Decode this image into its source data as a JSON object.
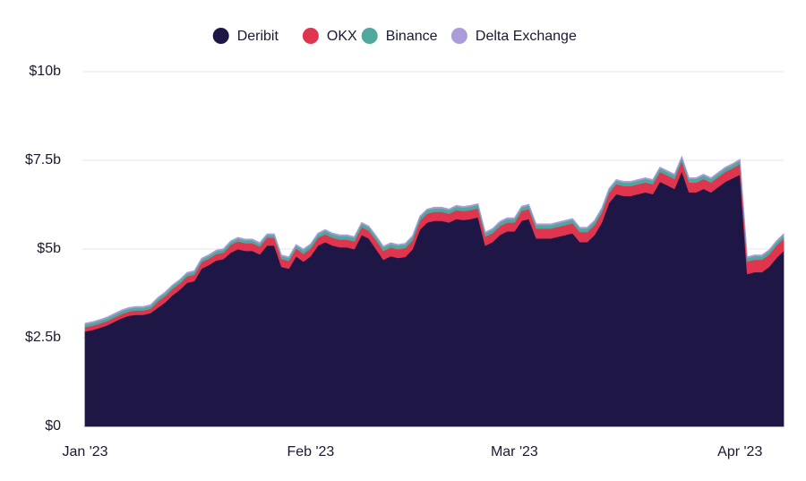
{
  "chart_data": {
    "type": "stacked_area",
    "categories": [
      "Jan '23",
      null,
      null,
      null,
      null,
      null,
      null,
      null,
      null,
      null,
      null,
      null,
      null,
      null,
      null,
      null,
      null,
      null,
      null,
      null,
      null,
      null,
      null,
      null,
      null,
      null,
      null,
      null,
      null,
      null,
      null,
      "Feb '23",
      null,
      null,
      null,
      null,
      null,
      null,
      null,
      null,
      null,
      null,
      null,
      null,
      null,
      null,
      null,
      null,
      null,
      null,
      null,
      null,
      null,
      null,
      null,
      null,
      null,
      null,
      null,
      "Mar '23",
      null,
      null,
      null,
      null,
      null,
      null,
      null,
      null,
      null,
      null,
      null,
      null,
      null,
      null,
      null,
      null,
      null,
      null,
      null,
      null,
      null,
      null,
      null,
      null,
      null,
      null,
      null,
      null,
      null,
      null,
      "Apr '23",
      null,
      null,
      null,
      null,
      null,
      null
    ],
    "series": [
      {
        "name": "Deribit",
        "color": "#1e1745",
        "values": [
          2.68,
          2.72,
          2.78,
          2.85,
          2.95,
          3.05,
          3.12,
          3.15,
          3.15,
          3.2,
          3.35,
          3.5,
          3.7,
          3.85,
          4.05,
          4.1,
          4.45,
          4.55,
          4.68,
          4.72,
          4.9,
          5.0,
          4.95,
          4.95,
          4.85,
          5.1,
          5.1,
          4.5,
          4.45,
          4.8,
          4.65,
          4.8,
          5.1,
          5.2,
          5.1,
          5.05,
          5.05,
          5.0,
          5.4,
          5.3,
          5.0,
          4.7,
          4.8,
          4.75,
          4.78,
          5.0,
          5.55,
          5.75,
          5.8,
          5.8,
          5.75,
          5.85,
          5.82,
          5.85,
          5.9,
          5.1,
          5.2,
          5.4,
          5.5,
          5.5,
          5.8,
          5.85,
          5.3,
          5.3,
          5.3,
          5.35,
          5.4,
          5.45,
          5.2,
          5.2,
          5.4,
          5.75,
          6.3,
          6.55,
          6.5,
          6.5,
          6.55,
          6.6,
          6.55,
          6.9,
          6.8,
          6.7,
          7.2,
          6.6,
          6.6,
          6.7,
          6.6,
          6.75,
          6.9,
          7.0,
          7.1,
          4.3,
          4.35,
          4.35,
          4.5,
          4.75,
          4.95
        ]
      },
      {
        "name": "OKX",
        "color": "#e0354f",
        "values": [
          0.12,
          0.12,
          0.12,
          0.12,
          0.12,
          0.12,
          0.12,
          0.12,
          0.12,
          0.12,
          0.18,
          0.18,
          0.18,
          0.18,
          0.18,
          0.18,
          0.18,
          0.18,
          0.18,
          0.18,
          0.22,
          0.22,
          0.22,
          0.22,
          0.22,
          0.22,
          0.22,
          0.22,
          0.22,
          0.22,
          0.22,
          0.22,
          0.22,
          0.22,
          0.22,
          0.22,
          0.22,
          0.22,
          0.22,
          0.22,
          0.25,
          0.25,
          0.25,
          0.25,
          0.25,
          0.25,
          0.25,
          0.25,
          0.25,
          0.25,
          0.25,
          0.25,
          0.25,
          0.25,
          0.25,
          0.25,
          0.25,
          0.25,
          0.25,
          0.25,
          0.28,
          0.28,
          0.28,
          0.28,
          0.28,
          0.28,
          0.28,
          0.28,
          0.28,
          0.28,
          0.28,
          0.28,
          0.28,
          0.28,
          0.28,
          0.28,
          0.28,
          0.28,
          0.28,
          0.28,
          0.28,
          0.28,
          0.28,
          0.28,
          0.28,
          0.28,
          0.28,
          0.28,
          0.28,
          0.28,
          0.3,
          0.35,
          0.35,
          0.35,
          0.35,
          0.35,
          0.35
        ]
      },
      {
        "name": "Binance",
        "color": "#4fa89c",
        "values": [
          0.08,
          0.08,
          0.08,
          0.08,
          0.08,
          0.08,
          0.08,
          0.08,
          0.08,
          0.08,
          0.08,
          0.08,
          0.08,
          0.08,
          0.08,
          0.08,
          0.08,
          0.08,
          0.08,
          0.08,
          0.08,
          0.08,
          0.08,
          0.08,
          0.08,
          0.08,
          0.08,
          0.08,
          0.08,
          0.08,
          0.1,
          0.1,
          0.1,
          0.1,
          0.1,
          0.1,
          0.1,
          0.1,
          0.1,
          0.1,
          0.1,
          0.1,
          0.1,
          0.1,
          0.1,
          0.1,
          0.1,
          0.1,
          0.1,
          0.1,
          0.1,
          0.1,
          0.1,
          0.1,
          0.1,
          0.1,
          0.1,
          0.1,
          0.1,
          0.1,
          0.1,
          0.1,
          0.1,
          0.1,
          0.1,
          0.1,
          0.1,
          0.1,
          0.1,
          0.1,
          0.1,
          0.1,
          0.1,
          0.1,
          0.1,
          0.1,
          0.1,
          0.1,
          0.1,
          0.1,
          0.1,
          0.1,
          0.1,
          0.1,
          0.1,
          0.1,
          0.1,
          0.1,
          0.1,
          0.1,
          0.1,
          0.1,
          0.1,
          0.1,
          0.1,
          0.1,
          0.1
        ]
      },
      {
        "name": "Delta Exchange",
        "color": "#a99cd9",
        "values": [
          0.03,
          0.03,
          0.03,
          0.03,
          0.03,
          0.03,
          0.03,
          0.03,
          0.03,
          0.03,
          0.03,
          0.03,
          0.03,
          0.03,
          0.03,
          0.03,
          0.03,
          0.03,
          0.03,
          0.03,
          0.03,
          0.03,
          0.03,
          0.03,
          0.03,
          0.03,
          0.03,
          0.03,
          0.03,
          0.03,
          0.03,
          0.03,
          0.03,
          0.03,
          0.03,
          0.03,
          0.03,
          0.03,
          0.03,
          0.03,
          0.03,
          0.03,
          0.03,
          0.03,
          0.03,
          0.03,
          0.03,
          0.03,
          0.03,
          0.03,
          0.03,
          0.03,
          0.03,
          0.03,
          0.03,
          0.03,
          0.03,
          0.03,
          0.03,
          0.03,
          0.03,
          0.03,
          0.03,
          0.03,
          0.03,
          0.03,
          0.03,
          0.03,
          0.03,
          0.03,
          0.03,
          0.03,
          0.03,
          0.03,
          0.03,
          0.03,
          0.03,
          0.03,
          0.03,
          0.03,
          0.03,
          0.03,
          0.03,
          0.03,
          0.03,
          0.03,
          0.03,
          0.03,
          0.03,
          0.03,
          0.03,
          0.03,
          0.03,
          0.03,
          0.03,
          0.03,
          0.03
        ]
      }
    ],
    "ylim": [
      0,
      10
    ],
    "yticks": [
      {
        "value": 0,
        "label": "$0"
      },
      {
        "value": 2.5,
        "label": "$2.5b"
      },
      {
        "value": 5,
        "label": "$5b"
      },
      {
        "value": 7.5,
        "label": "$7.5b"
      },
      {
        "value": 10,
        "label": "$10b"
      }
    ],
    "grid": true
  }
}
